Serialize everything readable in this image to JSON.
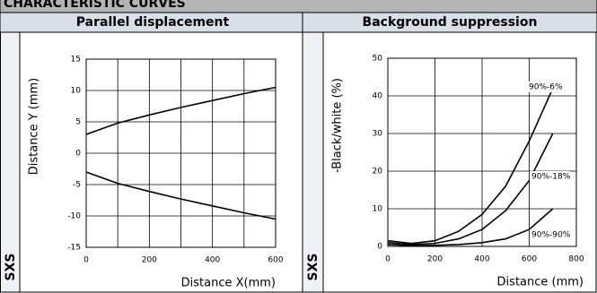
{
  "header": {
    "title": "CHARACTERISTIC CURVES"
  },
  "columns": [
    "Parallel displacement",
    "Background suppression"
  ],
  "row_label": "SXS",
  "chart_data": [
    {
      "type": "line",
      "y_label": "Distance Y (mm)",
      "x_label": "Distance X(mm)",
      "x": [
        0,
        100,
        200,
        300,
        400,
        500,
        600
      ],
      "series": [
        {
          "color": "#000000",
          "values": [
            3,
            4.8,
            6.1,
            7.3,
            8.4,
            9.5,
            10.5
          ]
        },
        {
          "color": "#000000",
          "values": [
            -3,
            -4.8,
            -6.1,
            -7.3,
            -8.4,
            -9.5,
            -10.5
          ]
        }
      ],
      "xlim": [
        0,
        600
      ],
      "xticks": [
        0,
        200,
        400,
        600
      ],
      "xgrid_minor": [
        100,
        300,
        500
      ],
      "ylim": [
        -15,
        15
      ],
      "yticks": [
        -15,
        -10,
        -5,
        0,
        5,
        10,
        15
      ],
      "grid": true
    },
    {
      "type": "line",
      "y_label": "-Black/white (%)",
      "x_label": "Distance (mm)",
      "x": [
        0,
        100,
        200,
        300,
        400,
        500,
        600,
        700
      ],
      "series": [
        {
          "name": "90%-6%",
          "color": "#000000",
          "values": [
            1.5,
            0.8,
            1.5,
            4,
            8.5,
            16,
            28,
            42
          ]
        },
        {
          "name": "90%-18%",
          "color": "#000000",
          "values": [
            1,
            0.5,
            0.8,
            2,
            4.5,
            9.5,
            17.5,
            30
          ]
        },
        {
          "name": "90%-90%",
          "color": "#000000",
          "values": [
            0.5,
            0.2,
            0.3,
            0.5,
            1,
            2,
            4.5,
            10
          ]
        }
      ],
      "xlim": [
        0,
        800
      ],
      "xticks": [
        0,
        200,
        400,
        600,
        800
      ],
      "ylim": [
        0,
        50
      ],
      "yticks": [
        0,
        10,
        20,
        30,
        40,
        50
      ],
      "grid": true
    }
  ]
}
